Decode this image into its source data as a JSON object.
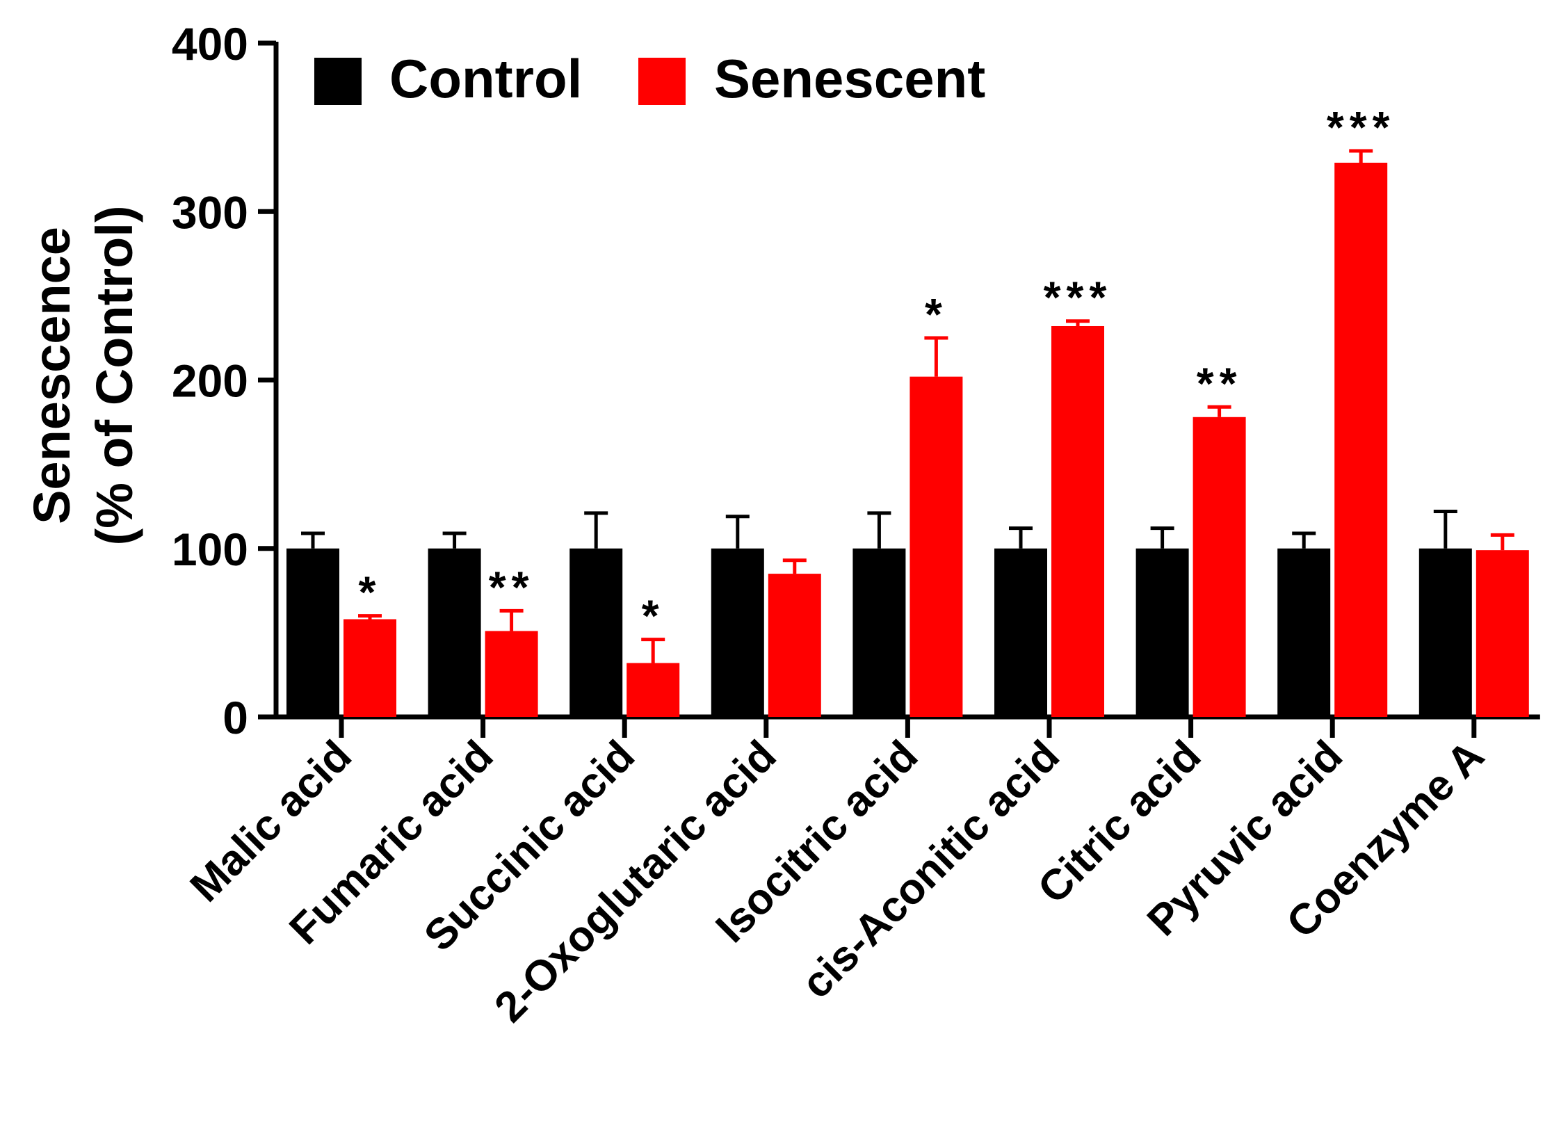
{
  "chart_data": {
    "type": "bar",
    "title": "",
    "xlabel": "",
    "ylabel_lines": [
      "Senescence",
      "(% of Control)"
    ],
    "ylim": [
      0,
      400
    ],
    "yticks": [
      0,
      100,
      200,
      300,
      400
    ],
    "grid": false,
    "legend_position": "top-left",
    "categories": [
      "Malic acid",
      "Fumaric acid",
      "Succinic acid",
      "2-Oxoglutaric acid",
      "Isocitric acid",
      "cis-Aconitic acid",
      "Citric acid",
      "Pyruvic acid",
      "Coenzyme A"
    ],
    "series": [
      {
        "name": "Control",
        "color": "#000000",
        "values": [
          100,
          100,
          100,
          100,
          100,
          100,
          100,
          100,
          100
        ],
        "error_upper": [
          9,
          9,
          21,
          19,
          21,
          12,
          12,
          9,
          22
        ]
      },
      {
        "name": "Senescent",
        "color": "#ff0000",
        "values": [
          58,
          51,
          32,
          85,
          202,
          232,
          178,
          329,
          99
        ],
        "error_upper": [
          2,
          12,
          14,
          8,
          23,
          3,
          6,
          7,
          9
        ]
      }
    ],
    "significance": [
      "*",
      "**",
      "*",
      "",
      "*",
      "***",
      "**",
      "***",
      ""
    ]
  }
}
